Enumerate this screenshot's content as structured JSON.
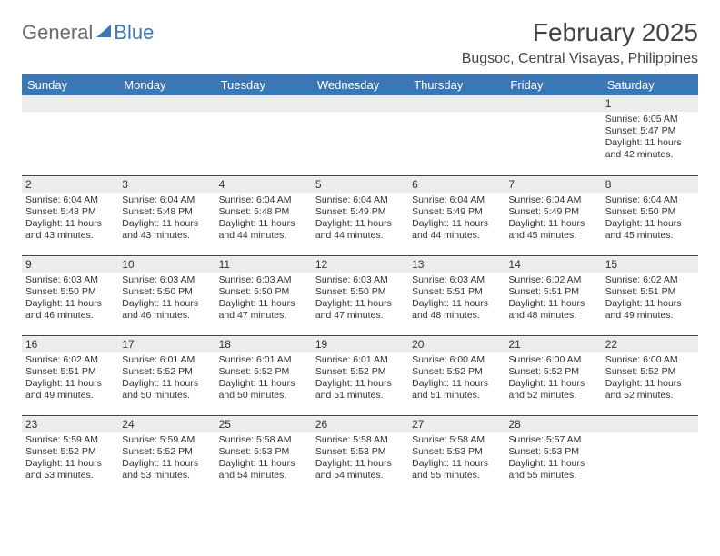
{
  "logo": {
    "text1": "General",
    "text2": "Blue"
  },
  "title": "February 2025",
  "location": "Bugsoc, Central Visayas, Philippines",
  "colors": {
    "header_bg": "#3a78b5",
    "header_fg": "#ffffff",
    "daynum_bg": "#ececec",
    "row_border": "#34495e",
    "logo_gray": "#6b6b6b",
    "logo_blue": "#3a78b5"
  },
  "weekdays": [
    "Sunday",
    "Monday",
    "Tuesday",
    "Wednesday",
    "Thursday",
    "Friday",
    "Saturday"
  ],
  "first_weekday_index": 6,
  "days": [
    {
      "n": "1",
      "sunrise": "Sunrise: 6:05 AM",
      "sunset": "Sunset: 5:47 PM",
      "daylight": "Daylight: 11 hours and 42 minutes."
    },
    {
      "n": "2",
      "sunrise": "Sunrise: 6:04 AM",
      "sunset": "Sunset: 5:48 PM",
      "daylight": "Daylight: 11 hours and 43 minutes."
    },
    {
      "n": "3",
      "sunrise": "Sunrise: 6:04 AM",
      "sunset": "Sunset: 5:48 PM",
      "daylight": "Daylight: 11 hours and 43 minutes."
    },
    {
      "n": "4",
      "sunrise": "Sunrise: 6:04 AM",
      "sunset": "Sunset: 5:48 PM",
      "daylight": "Daylight: 11 hours and 44 minutes."
    },
    {
      "n": "5",
      "sunrise": "Sunrise: 6:04 AM",
      "sunset": "Sunset: 5:49 PM",
      "daylight": "Daylight: 11 hours and 44 minutes."
    },
    {
      "n": "6",
      "sunrise": "Sunrise: 6:04 AM",
      "sunset": "Sunset: 5:49 PM",
      "daylight": "Daylight: 11 hours and 44 minutes."
    },
    {
      "n": "7",
      "sunrise": "Sunrise: 6:04 AM",
      "sunset": "Sunset: 5:49 PM",
      "daylight": "Daylight: 11 hours and 45 minutes."
    },
    {
      "n": "8",
      "sunrise": "Sunrise: 6:04 AM",
      "sunset": "Sunset: 5:50 PM",
      "daylight": "Daylight: 11 hours and 45 minutes."
    },
    {
      "n": "9",
      "sunrise": "Sunrise: 6:03 AM",
      "sunset": "Sunset: 5:50 PM",
      "daylight": "Daylight: 11 hours and 46 minutes."
    },
    {
      "n": "10",
      "sunrise": "Sunrise: 6:03 AM",
      "sunset": "Sunset: 5:50 PM",
      "daylight": "Daylight: 11 hours and 46 minutes."
    },
    {
      "n": "11",
      "sunrise": "Sunrise: 6:03 AM",
      "sunset": "Sunset: 5:50 PM",
      "daylight": "Daylight: 11 hours and 47 minutes."
    },
    {
      "n": "12",
      "sunrise": "Sunrise: 6:03 AM",
      "sunset": "Sunset: 5:50 PM",
      "daylight": "Daylight: 11 hours and 47 minutes."
    },
    {
      "n": "13",
      "sunrise": "Sunrise: 6:03 AM",
      "sunset": "Sunset: 5:51 PM",
      "daylight": "Daylight: 11 hours and 48 minutes."
    },
    {
      "n": "14",
      "sunrise": "Sunrise: 6:02 AM",
      "sunset": "Sunset: 5:51 PM",
      "daylight": "Daylight: 11 hours and 48 minutes."
    },
    {
      "n": "15",
      "sunrise": "Sunrise: 6:02 AM",
      "sunset": "Sunset: 5:51 PM",
      "daylight": "Daylight: 11 hours and 49 minutes."
    },
    {
      "n": "16",
      "sunrise": "Sunrise: 6:02 AM",
      "sunset": "Sunset: 5:51 PM",
      "daylight": "Daylight: 11 hours and 49 minutes."
    },
    {
      "n": "17",
      "sunrise": "Sunrise: 6:01 AM",
      "sunset": "Sunset: 5:52 PM",
      "daylight": "Daylight: 11 hours and 50 minutes."
    },
    {
      "n": "18",
      "sunrise": "Sunrise: 6:01 AM",
      "sunset": "Sunset: 5:52 PM",
      "daylight": "Daylight: 11 hours and 50 minutes."
    },
    {
      "n": "19",
      "sunrise": "Sunrise: 6:01 AM",
      "sunset": "Sunset: 5:52 PM",
      "daylight": "Daylight: 11 hours and 51 minutes."
    },
    {
      "n": "20",
      "sunrise": "Sunrise: 6:00 AM",
      "sunset": "Sunset: 5:52 PM",
      "daylight": "Daylight: 11 hours and 51 minutes."
    },
    {
      "n": "21",
      "sunrise": "Sunrise: 6:00 AM",
      "sunset": "Sunset: 5:52 PM",
      "daylight": "Daylight: 11 hours and 52 minutes."
    },
    {
      "n": "22",
      "sunrise": "Sunrise: 6:00 AM",
      "sunset": "Sunset: 5:52 PM",
      "daylight": "Daylight: 11 hours and 52 minutes."
    },
    {
      "n": "23",
      "sunrise": "Sunrise: 5:59 AM",
      "sunset": "Sunset: 5:52 PM",
      "daylight": "Daylight: 11 hours and 53 minutes."
    },
    {
      "n": "24",
      "sunrise": "Sunrise: 5:59 AM",
      "sunset": "Sunset: 5:52 PM",
      "daylight": "Daylight: 11 hours and 53 minutes."
    },
    {
      "n": "25",
      "sunrise": "Sunrise: 5:58 AM",
      "sunset": "Sunset: 5:53 PM",
      "daylight": "Daylight: 11 hours and 54 minutes."
    },
    {
      "n": "26",
      "sunrise": "Sunrise: 5:58 AM",
      "sunset": "Sunset: 5:53 PM",
      "daylight": "Daylight: 11 hours and 54 minutes."
    },
    {
      "n": "27",
      "sunrise": "Sunrise: 5:58 AM",
      "sunset": "Sunset: 5:53 PM",
      "daylight": "Daylight: 11 hours and 55 minutes."
    },
    {
      "n": "28",
      "sunrise": "Sunrise: 5:57 AM",
      "sunset": "Sunset: 5:53 PM",
      "daylight": "Daylight: 11 hours and 55 minutes."
    }
  ]
}
